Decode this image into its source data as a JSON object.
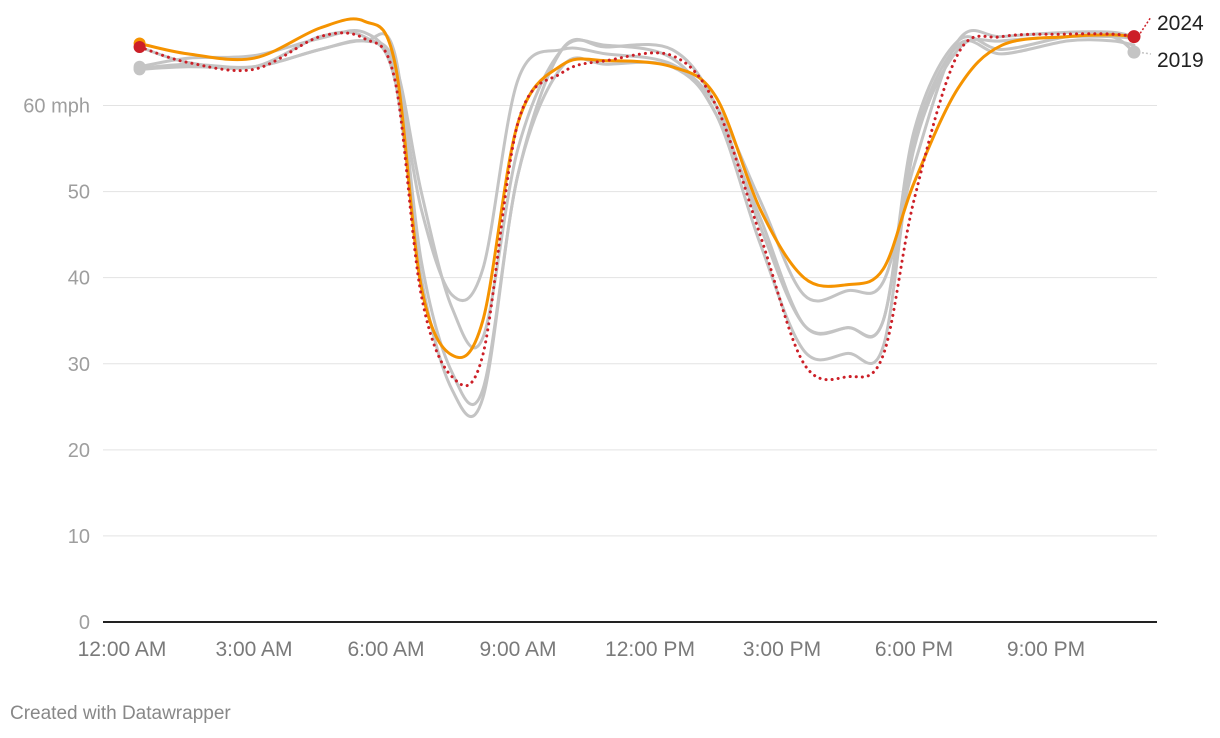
{
  "chart_data": {
    "type": "line",
    "title": "",
    "xlabel": "",
    "ylabel": "",
    "x_ticks": [
      {
        "hour": 0,
        "label": "12:00 AM"
      },
      {
        "hour": 3,
        "label": "3:00 AM"
      },
      {
        "hour": 6,
        "label": "6:00 AM"
      },
      {
        "hour": 9,
        "label": "9:00 AM"
      },
      {
        "hour": 12,
        "label": "12:00 PM"
      },
      {
        "hour": 15,
        "label": "3:00 PM"
      },
      {
        "hour": 18,
        "label": "6:00 PM"
      },
      {
        "hour": 21,
        "label": "9:00 PM"
      }
    ],
    "y_ticks": [
      {
        "value": 0,
        "label": "0"
      },
      {
        "value": 10,
        "label": "10"
      },
      {
        "value": 20,
        "label": "20"
      },
      {
        "value": 30,
        "label": "30"
      },
      {
        "value": 40,
        "label": "40"
      },
      {
        "value": 50,
        "label": "50"
      },
      {
        "value": 60,
        "label": "60 mph"
      }
    ],
    "xlim": [
      0,
      23.5
    ],
    "ylim": [
      0,
      70
    ],
    "grid": true,
    "series": [
      {
        "style": "gray",
        "color": "#c4c4c4",
        "x": [
          0.4,
          1.5,
          3,
          4.5,
          5.5,
          6.2,
          6.8,
          7.5,
          8.2,
          9.0,
          10.0,
          11.0,
          12.5,
          13.5,
          14.5,
          15.5,
          16.5,
          17.3,
          18.0,
          19.0,
          20.0,
          21.5,
          22.5,
          23.0
        ],
        "y": [
          64.5,
          65.5,
          65.8,
          67.8,
          68.5,
          64,
          48,
          38,
          41,
          63,
          66.5,
          66,
          64.8,
          60,
          49,
          38,
          38.5,
          39.5,
          53,
          67.5,
          68,
          68.5,
          68.5,
          68
        ]
      },
      {
        "style": "gray",
        "color": "#c4c4c4",
        "x": [
          0.4,
          1.5,
          3,
          4.5,
          5.5,
          6.2,
          6.8,
          7.5,
          8.2,
          9.0,
          10.0,
          11.0,
          12.5,
          13.5,
          14.5,
          15.5,
          16.5,
          17.3,
          18.0,
          19.0,
          20.0,
          21.5,
          22.5,
          23.0
        ],
        "y": [
          64.3,
          64.8,
          64.5,
          66.5,
          67.5,
          66,
          42,
          29,
          27,
          52,
          66.5,
          66.8,
          66.5,
          60,
          46,
          34.5,
          34.2,
          35,
          56,
          67,
          66,
          67.5,
          67.5,
          67
        ]
      },
      {
        "style": "gray",
        "color": "#c4c4c4",
        "x": [
          0.4,
          1.5,
          3,
          4.5,
          5.5,
          6.2,
          6.8,
          7.5,
          8.2,
          9.0,
          10.0,
          11.0,
          12.5,
          13.5,
          14.5,
          15.5,
          16.5,
          17.3,
          18.0,
          19.0,
          20.0,
          21.5,
          22.5,
          23.0
        ],
        "y": [
          66.8,
          65,
          64.5,
          68,
          68,
          63,
          40,
          27,
          26,
          52,
          64.5,
          64.8,
          64.5,
          59,
          44,
          31.5,
          31.2,
          32,
          55,
          66.5,
          67.5,
          68,
          68,
          67.8
        ]
      },
      {
        "style": "gray",
        "color": "#c4c4c4",
        "end_label": "2019",
        "end_dot": true,
        "x": [
          0.4,
          1.5,
          3,
          4.5,
          5.5,
          6.2,
          6.8,
          7.5,
          8.2,
          9.0,
          10.0,
          11.0,
          12.5,
          13.5,
          14.5,
          15.5,
          16.5,
          17.3,
          18.0,
          19.0,
          20.0,
          21.5,
          22.5,
          23.0
        ],
        "y": [
          64.2,
          64.5,
          64.5,
          66.5,
          67.5,
          65,
          50,
          36.5,
          33,
          55,
          66.5,
          67,
          65.5,
          59,
          47,
          34.5,
          34.2,
          35,
          57,
          67.5,
          66.5,
          68,
          68,
          66.2
        ]
      },
      {
        "style": "orange",
        "color": "#f59300",
        "x": [
          0.4,
          1.5,
          3,
          4.5,
          5.5,
          6.2,
          6.8,
          7.5,
          8.2,
          9.0,
          10.0,
          11.0,
          12.5,
          13.5,
          14.5,
          15.5,
          16.5,
          17.3,
          18.0,
          19.0,
          20.0,
          21.5,
          22.5,
          23.0
        ],
        "y": [
          67.2,
          66,
          65.5,
          69,
          69.8,
          65,
          39,
          31,
          35,
          58,
          64.7,
          65.2,
          64.5,
          61,
          48,
          40,
          39.2,
          41,
          51,
          62,
          67,
          68,
          68.2,
          68
        ]
      },
      {
        "style": "red-dotted",
        "color": "#cc1f27",
        "end_label": "2024",
        "end_dot": true,
        "dotted": true,
        "x": [
          0.4,
          1.5,
          3,
          4.5,
          5.5,
          6.2,
          6.8,
          7.5,
          8.2,
          9.0,
          10.0,
          11.0,
          12.5,
          13.5,
          14.5,
          15.5,
          16.5,
          17.3,
          18.0,
          19.0,
          20.0,
          21.5,
          22.5,
          23.0
        ],
        "y": [
          66.8,
          65,
          64.2,
          68,
          67.8,
          63,
          38,
          28.5,
          31,
          58,
          63.8,
          65.2,
          65.8,
          60,
          45,
          30,
          28.5,
          31,
          49,
          66,
          68,
          68.3,
          68.3,
          68
        ]
      }
    ]
  },
  "credit": "Created with Datawrapper"
}
